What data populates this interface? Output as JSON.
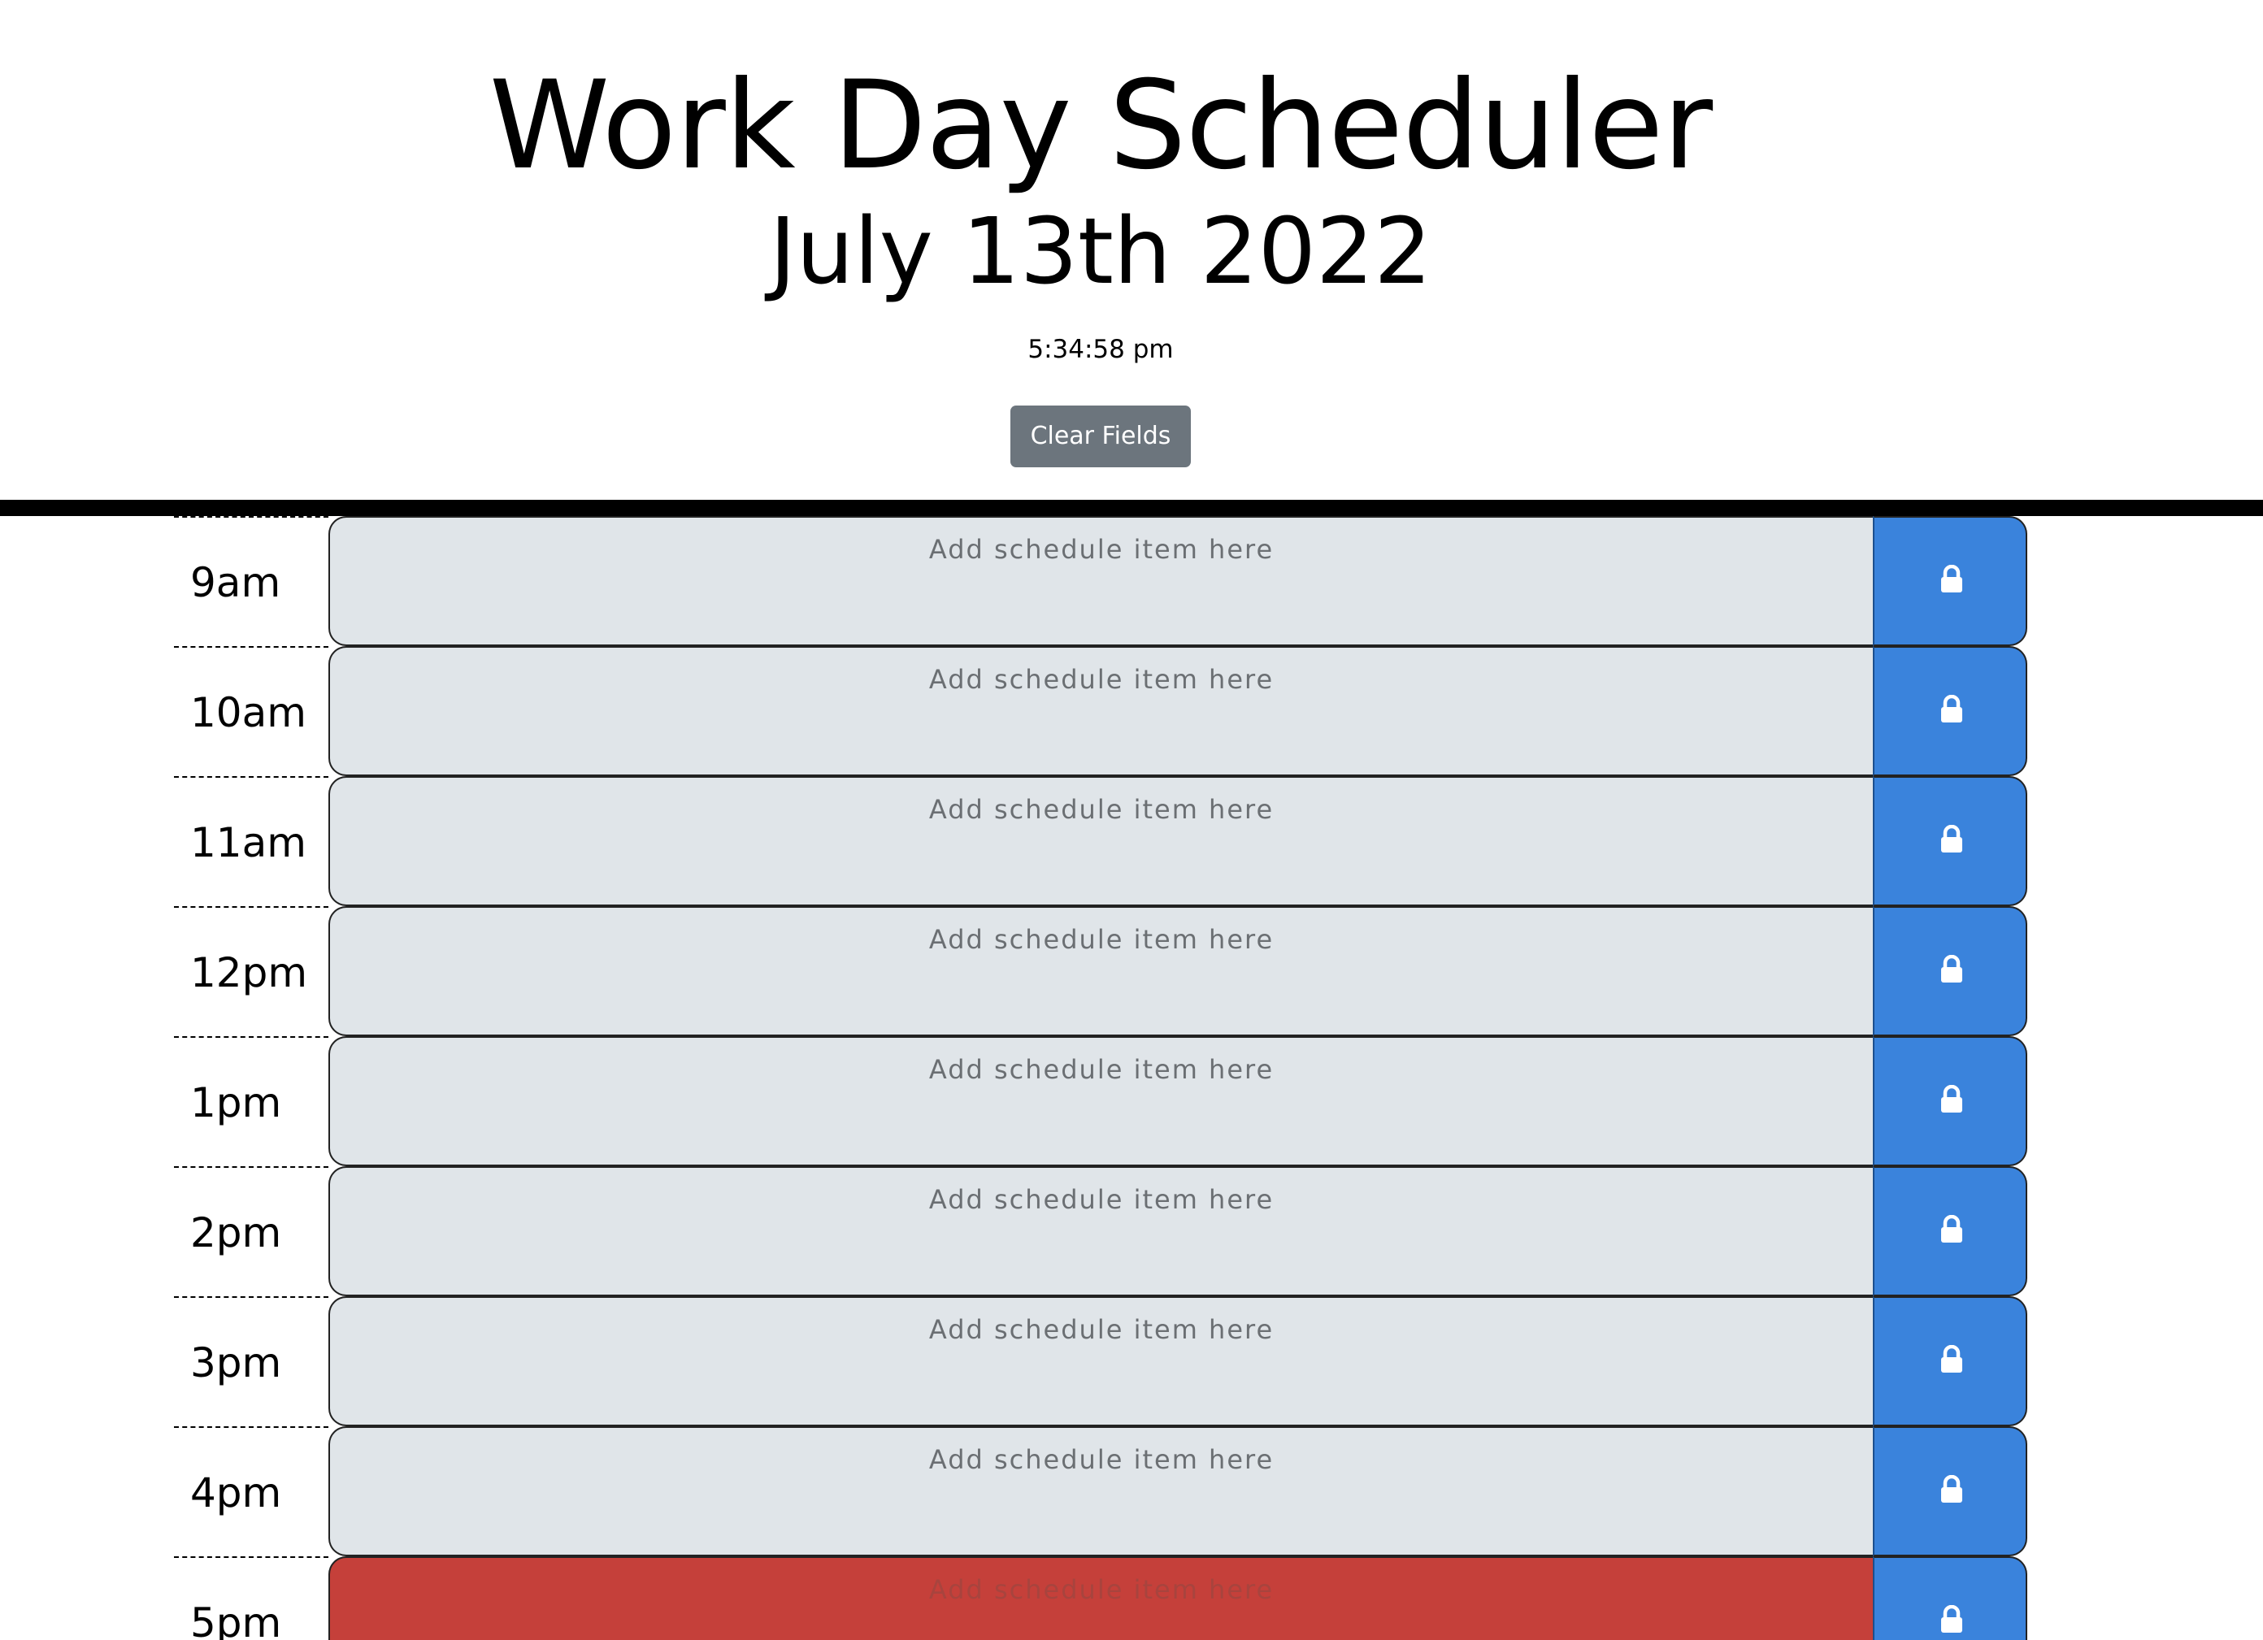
{
  "header": {
    "title": "Work Day Scheduler",
    "date": "July 13th 2022",
    "time": "5:34:58 pm",
    "clear_button_label": "Clear Fields"
  },
  "schedule": {
    "placeholder": "Add schedule item here",
    "lock_icon": "lock-icon",
    "colors": {
      "past_present_future_default": "#e0e5e9",
      "current_hour": "#c5403a",
      "save_button": "#3a83dc"
    },
    "rows": [
      {
        "hour": "9am",
        "status": "past",
        "value": ""
      },
      {
        "hour": "10am",
        "status": "past",
        "value": ""
      },
      {
        "hour": "11am",
        "status": "past",
        "value": ""
      },
      {
        "hour": "12pm",
        "status": "past",
        "value": ""
      },
      {
        "hour": "1pm",
        "status": "past",
        "value": ""
      },
      {
        "hour": "2pm",
        "status": "past",
        "value": ""
      },
      {
        "hour": "3pm",
        "status": "past",
        "value": ""
      },
      {
        "hour": "4pm",
        "status": "past",
        "value": ""
      },
      {
        "hour": "5pm",
        "status": "present",
        "value": ""
      }
    ]
  }
}
